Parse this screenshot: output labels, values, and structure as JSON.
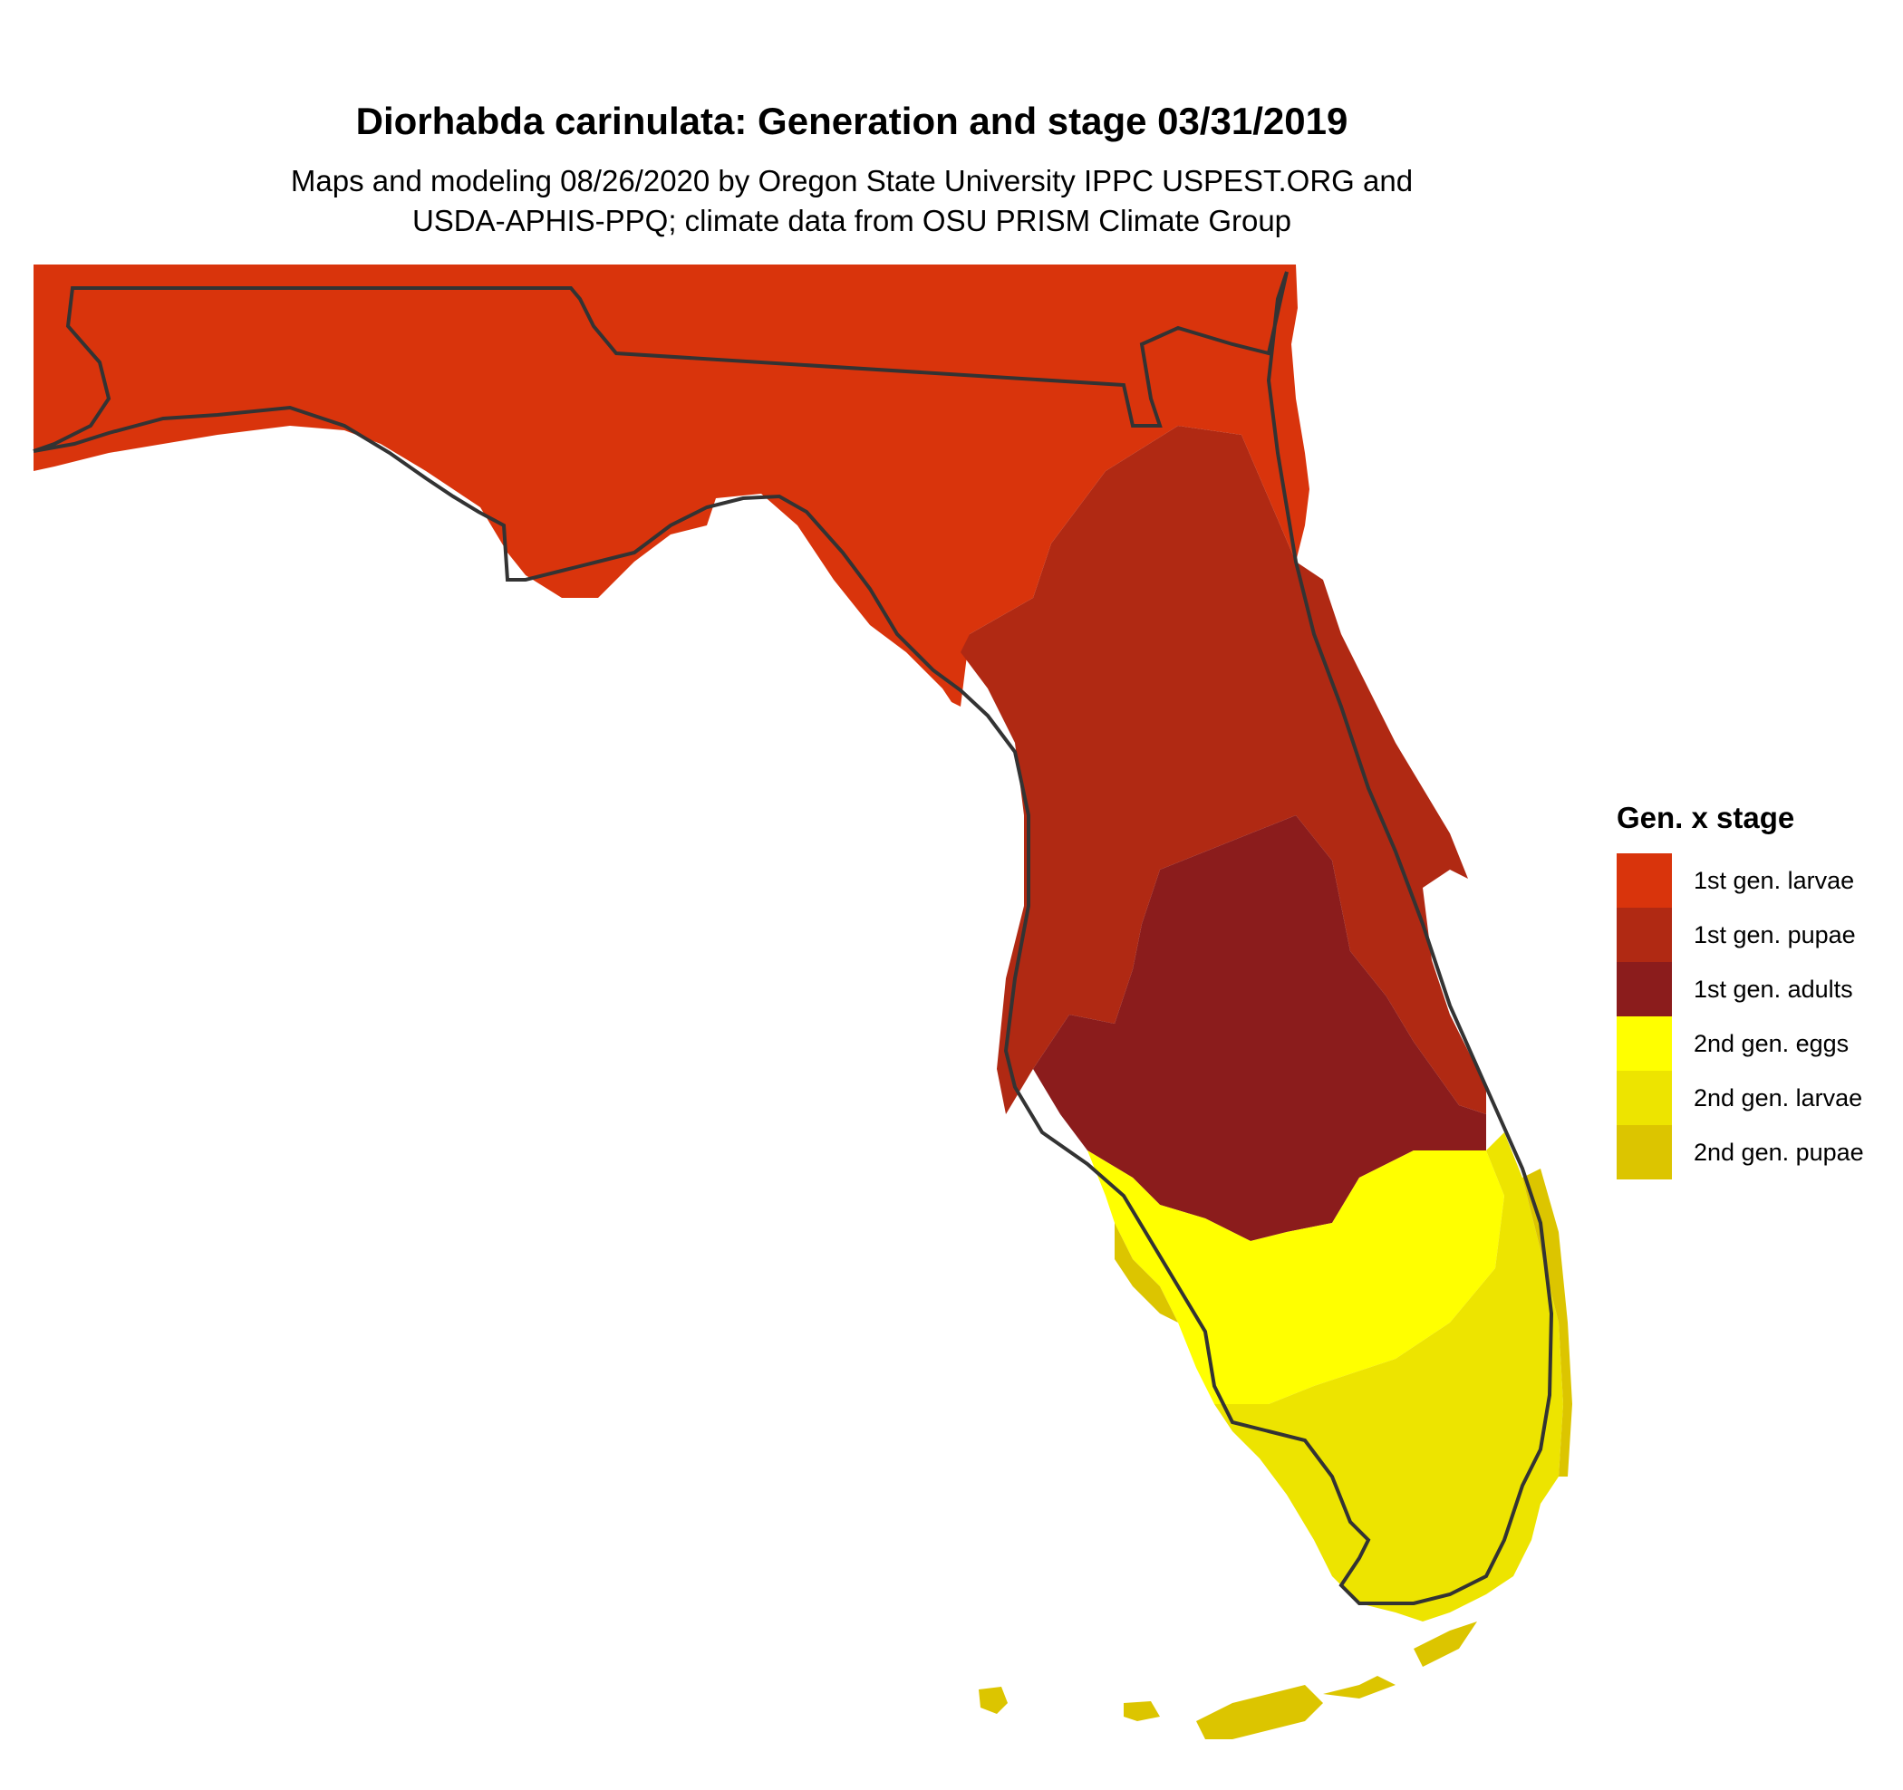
{
  "title": "Diorhabda carinulata: Generation and stage 03/31/2019",
  "subtitle_line1": "Maps and modeling 08/26/2020 by Oregon State University IPPC USPEST.ORG and",
  "subtitle_line2": "USDA-APHIS-PPQ; climate data from OSU PRISM Climate Group",
  "legend": {
    "title": "Gen. x stage",
    "items": [
      {
        "label": "1st gen. larvae",
        "color": "#d9340c"
      },
      {
        "label": "1st gen. pupae",
        "color": "#b02913"
      },
      {
        "label": "1st gen. adults",
        "color": "#8b1c1c"
      },
      {
        "label": "2nd gen. eggs",
        "color": "#ffff00"
      },
      {
        "label": "2nd gen. larvae",
        "color": "#ede400"
      },
      {
        "label": "2nd gen. pupae",
        "color": "#dcc500"
      }
    ]
  },
  "map": {
    "region": "Florida",
    "outline_color": "#333333"
  }
}
